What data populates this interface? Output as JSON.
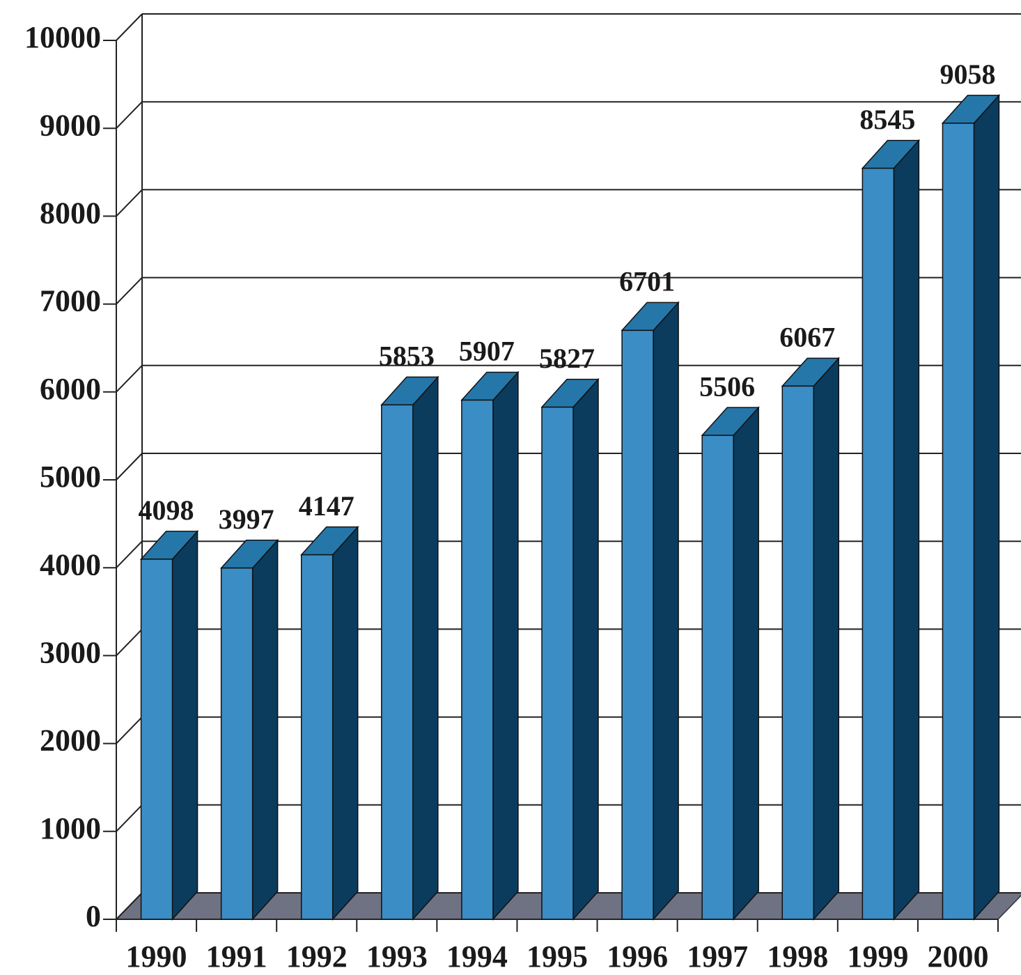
{
  "chart_data": {
    "type": "bar3d",
    "categories": [
      "1990",
      "1991",
      "1992",
      "1993",
      "1994",
      "1995",
      "1996",
      "1997",
      "1998",
      "1999",
      "2000"
    ],
    "values": [
      4098,
      3997,
      4147,
      5853,
      5907,
      5827,
      6701,
      5506,
      6067,
      8545,
      9058
    ],
    "color": "#3b8dc5",
    "ylim": [
      0,
      10000
    ],
    "yticks": [
      0,
      1000,
      2000,
      3000,
      4000,
      5000,
      6000,
      7000,
      8000,
      9000,
      10000
    ],
    "grid": true
  }
}
